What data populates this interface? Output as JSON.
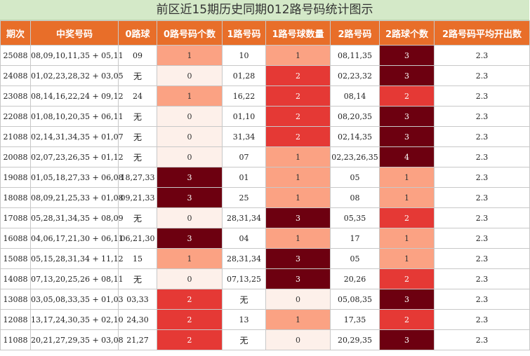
{
  "title": "前区近15期历史同期012路号码统计图示",
  "colors": {
    "header_bg": "#e86e29",
    "title_bg": "#d4e9c8",
    "heat_0": "#fdf0ea",
    "heat_1": "#fba283",
    "heat_2": "#e53935",
    "heat_3": "#6d0010",
    "heat_4": "#6d0010"
  },
  "chart_data": {
    "type": "table",
    "columns": [
      "期次",
      "中奖号码",
      "0路球",
      "0路号码个数",
      "1路号码",
      "1路号球数量",
      "2路号码",
      "2路球个数",
      "2路号码平均开出数"
    ],
    "rows": [
      [
        "25088",
        "08,09,10,11,35 + 05,11",
        "09",
        1,
        "10",
        1,
        "08,11,35",
        3,
        "2.3"
      ],
      [
        "24088",
        "01,02,23,28,32 + 03,05",
        "无",
        0,
        "01,28",
        2,
        "02,23,32",
        3,
        "2.3"
      ],
      [
        "23088",
        "08,14,16,22,24 + 09,12",
        "24",
        1,
        "16,22",
        2,
        "08,14",
        2,
        "2.3"
      ],
      [
        "22088",
        "01,08,10,20,35 + 06,11",
        "无",
        0,
        "01,10",
        2,
        "08,20,35",
        3,
        "2.3"
      ],
      [
        "21088",
        "02,14,31,34,35 + 01,07",
        "无",
        0,
        "31,34",
        2,
        "02,14,35",
        3,
        "2.3"
      ],
      [
        "20088",
        "02,07,23,26,35 + 01,12",
        "无",
        0,
        "07",
        1,
        "02,23,26,35",
        4,
        "2.3"
      ],
      [
        "19088",
        "01,05,18,27,33 + 06,08",
        "18,27,33",
        3,
        "01",
        1,
        "05",
        1,
        "2.3"
      ],
      [
        "18088",
        "08,09,21,25,33 + 01,08",
        "09,21,33",
        3,
        "25",
        1,
        "08",
        1,
        "2.3"
      ],
      [
        "17088",
        "05,28,31,34,35 + 08,09",
        "无",
        0,
        "28,31,34",
        3,
        "05,35",
        2,
        "2.3"
      ],
      [
        "16088",
        "04,06,17,21,30 + 06,11",
        "06,21,30",
        3,
        "04",
        1,
        "17",
        1,
        "2.3"
      ],
      [
        "15088",
        "05,15,28,31,34 + 11,12",
        "15",
        1,
        "28,31,34",
        3,
        "05",
        1,
        "2.3"
      ],
      [
        "14088",
        "07,13,20,25,26 + 08,11",
        "无",
        0,
        "07,13,25",
        3,
        "20,26",
        2,
        "2.3"
      ],
      [
        "13088",
        "03,05,08,33,35 + 01,03",
        "03,33",
        2,
        "无",
        0,
        "05,08,35",
        3,
        "2.3"
      ],
      [
        "12088",
        "13,17,24,30,35 + 02,10",
        "24,30",
        2,
        "13",
        1,
        "17,35",
        2,
        "2.3"
      ],
      [
        "11088",
        "20,21,27,29,35 + 03,08",
        "21,27",
        2,
        "无",
        0,
        "20,29,35",
        3,
        "2.3"
      ]
    ]
  }
}
